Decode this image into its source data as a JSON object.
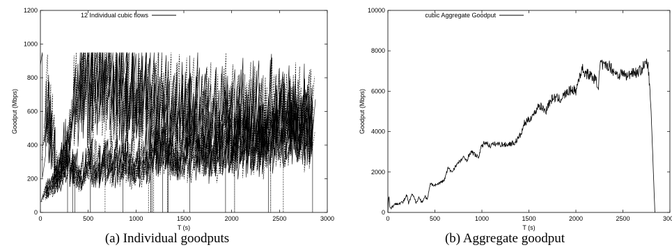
{
  "captions": [
    "(a)  Individual goodputs",
    "(b)  Aggregate goodput"
  ],
  "chart_data": [
    {
      "type": "line",
      "title": "",
      "xlabel": "T (s)",
      "ylabel": "Goodput (Mbps)",
      "xlim": [
        0,
        3000
      ],
      "ylim": [
        0,
        1200
      ],
      "xticks": [
        0,
        500,
        1000,
        1500,
        2000,
        2500,
        3000
      ],
      "yticks": [
        0,
        200,
        400,
        600,
        800,
        1000,
        1200
      ],
      "legend": {
        "position": "top-left",
        "label": "12 Individual cubic flows"
      },
      "series_style": {
        "color": "#000000"
      },
      "series": [
        {
          "start": 0,
          "end": 2840,
          "values": [
            [
              0,
              940
            ],
            [
              20,
              300
            ],
            [
              40,
              700
            ],
            [
              80,
              600
            ],
            [
              150,
              200
            ],
            [
              300,
              500
            ],
            [
              430,
              940
            ],
            [
              500,
              780
            ],
            [
              600,
              900
            ],
            [
              700,
              820
            ],
            [
              800,
              780
            ],
            [
              900,
              720
            ],
            [
              1000,
              700
            ],
            [
              1100,
              680
            ],
            [
              1200,
              660
            ],
            [
              1300,
              640
            ],
            [
              1400,
              620
            ],
            [
              1500,
              600
            ],
            [
              1600,
              650
            ],
            [
              1700,
              620
            ],
            [
              1800,
              600
            ],
            [
              1900,
              620
            ],
            [
              2000,
              600
            ],
            [
              2100,
              640
            ],
            [
              2200,
              620
            ],
            [
              2300,
              600
            ],
            [
              2400,
              620
            ],
            [
              2500,
              600
            ],
            [
              2600,
              620
            ],
            [
              2700,
              600
            ],
            [
              2800,
              620
            ],
            [
              2840,
              600
            ]
          ]
        },
        {
          "start": 0,
          "end": 2840,
          "values": [
            [
              0,
              100
            ],
            [
              200,
              250
            ],
            [
              300,
              300
            ],
            [
              400,
              240
            ],
            [
              500,
              300
            ],
            [
              600,
              280
            ],
            [
              800,
              320
            ],
            [
              1000,
              300
            ],
            [
              1200,
              380
            ],
            [
              1400,
              360
            ],
            [
              1600,
              400
            ],
            [
              1800,
              380
            ],
            [
              2000,
              420
            ],
            [
              2200,
              450
            ],
            [
              2400,
              480
            ],
            [
              2600,
              500
            ],
            [
              2800,
              520
            ]
          ]
        }
      ]
    },
    {
      "type": "line",
      "title": "",
      "xlabel": "T (s)",
      "ylabel": "Goodput (Mbps)",
      "xlim": [
        0,
        3000
      ],
      "ylim": [
        0,
        10000
      ],
      "xticks": [
        0,
        500,
        1000,
        1500,
        2000,
        2500,
        3000
      ],
      "yticks": [
        0,
        2000,
        4000,
        6000,
        8000,
        10000
      ],
      "legend": {
        "position": "top-left",
        "label": "cubic Aggregate Goodput"
      },
      "series_style": {
        "color": "#000000"
      },
      "series": [
        {
          "x": [
            0,
            10,
            20,
            30,
            60,
            100,
            160,
            200,
            220,
            260,
            300,
            330,
            360,
            400,
            420,
            450,
            500,
            550,
            600,
            640,
            680,
            720,
            760,
            800,
            840,
            880,
            920,
            960,
            1000,
            1040,
            1080,
            1150,
            1250,
            1350,
            1420,
            1450,
            1480,
            1520,
            1560,
            1600,
            1640,
            1680,
            1700,
            1760,
            1830,
            1900,
            1960,
            2000,
            2040,
            2070,
            2100,
            2150,
            2200,
            2240,
            2260,
            2300,
            2350,
            2400,
            2450,
            2500,
            2550,
            2600,
            2650,
            2700,
            2730,
            2750,
            2770,
            2800,
            2840
          ],
          "y": [
            0,
            900,
            300,
            200,
            350,
            450,
            500,
            850,
            450,
            900,
            500,
            750,
            500,
            800,
            600,
            1400,
            1350,
            1450,
            1600,
            2200,
            2000,
            2300,
            2500,
            2700,
            2600,
            3000,
            2900,
            2700,
            3300,
            3500,
            3300,
            3400,
            3350,
            3450,
            3900,
            4400,
            4500,
            4700,
            4900,
            5300,
            5200,
            5000,
            5300,
            5700,
            5600,
            5900,
            6100,
            6000,
            6800,
            7100,
            6900,
            6800,
            6600,
            6300,
            7400,
            7200,
            7300,
            7000,
            6800,
            6900,
            6700,
            7000,
            6900,
            7100,
            7300,
            7400,
            7200,
            5000,
            0
          ]
        }
      ]
    }
  ]
}
